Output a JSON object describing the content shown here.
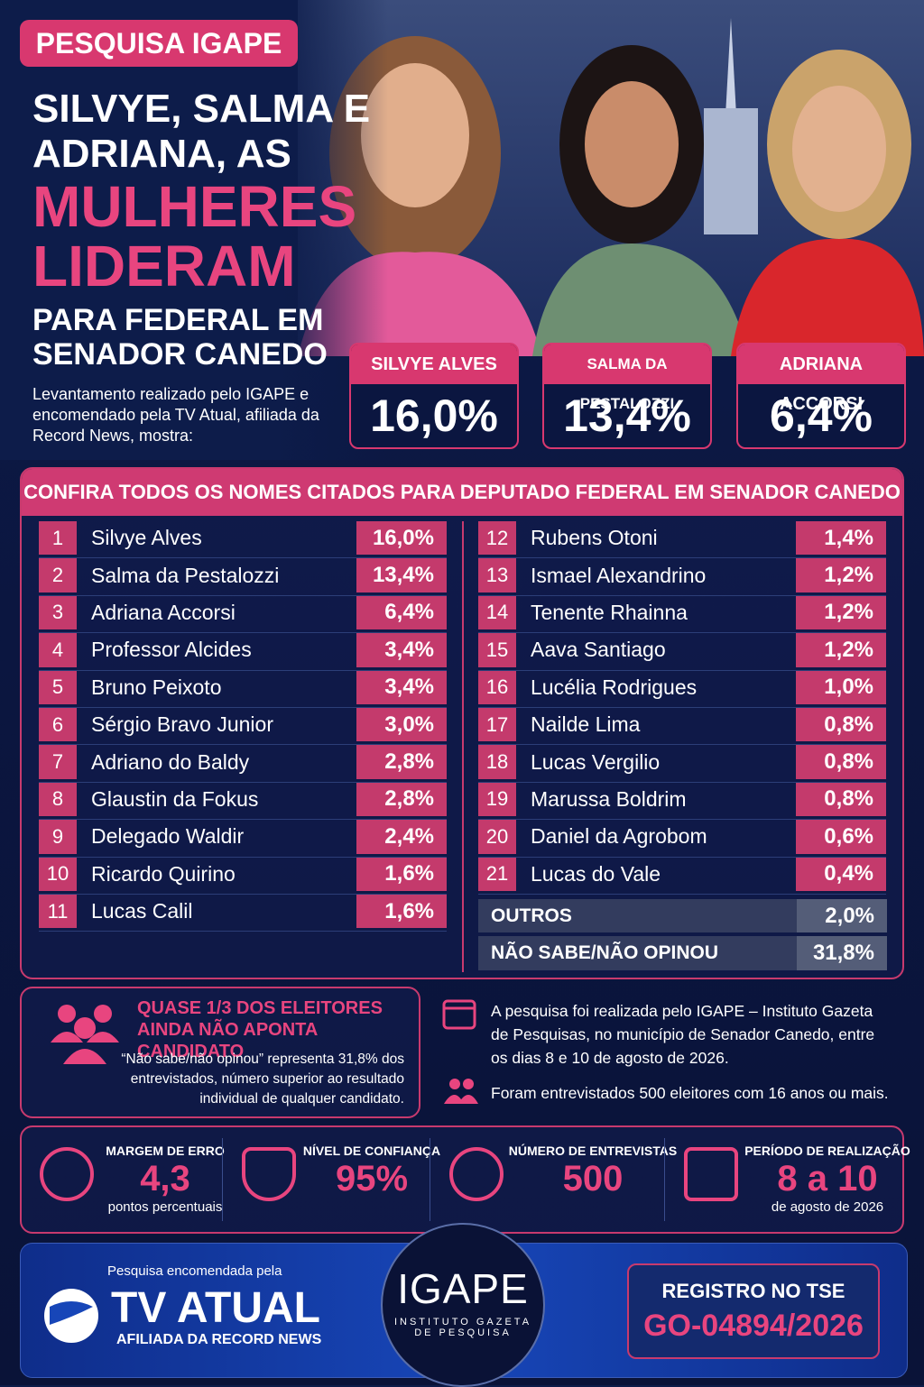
{
  "header": {
    "tag": "PESQUISA IGAPE",
    "title_lines": [
      "SILVYE, SALMA E",
      "ADRIANA, AS"
    ],
    "highlight_lines": [
      "MULHERES",
      "LIDERAM"
    ],
    "subtitle_lines": [
      "PARA FEDERAL EM",
      "SENADOR CANEDO"
    ],
    "intro": "Levantamento realizado pelo IGAPE e encomendado pela TV Atual, afiliada da Record News, mostra:"
  },
  "leaders": [
    {
      "name": "SILVYE ALVES",
      "value": "16,0%"
    },
    {
      "name": "SALMA DA PESTALOZZI",
      "value": "13,4%"
    },
    {
      "name": "ADRIANA ACCORSI",
      "value": "6,4%"
    }
  ],
  "table": {
    "title": "CONFIRA TODOS OS NOMES CITADOS PARA DEPUTADO FEDERAL EM SENADOR CANEDO",
    "rows": [
      [
        "1",
        "Silvye Alves",
        "16,0%"
      ],
      [
        "2",
        "Salma da Pestalozzi",
        "13,4%"
      ],
      [
        "3",
        "Adriana Accorsi",
        "6,4%"
      ],
      [
        "4",
        "Professor Alcides",
        "3,4%"
      ],
      [
        "5",
        "Bruno Peixoto",
        "3,4%"
      ],
      [
        "6",
        "Sérgio Bravo Junior",
        "3,0%"
      ],
      [
        "7",
        "Adriano do Baldy",
        "2,8%"
      ],
      [
        "8",
        "Glaustin da Fokus",
        "2,8%"
      ],
      [
        "9",
        "Delegado Waldir",
        "2,4%"
      ],
      [
        "10",
        "Ricardo Quirino",
        "1,6%"
      ],
      [
        "11",
        "Lucas Calil",
        "1,6%"
      ],
      [
        "12",
        "Rubens Otoni",
        "1,4%"
      ],
      [
        "13",
        "Ismael Alexandrino",
        "1,2%"
      ],
      [
        "14",
        "Tenente Rhainna",
        "1,2%"
      ],
      [
        "15",
        "Aava Santiago",
        "1,2%"
      ],
      [
        "16",
        "Lucélia Rodrigues",
        "1,0%"
      ],
      [
        "17",
        "Nailde Lima",
        "0,8%"
      ],
      [
        "18",
        "Lucas Vergilio",
        "0,8%"
      ],
      [
        "19",
        "Marussa Boldrim",
        "0,8%"
      ],
      [
        "20",
        "Daniel da Agrobom",
        "0,6%"
      ],
      [
        "21",
        "Lucas do Vale",
        "0,4%"
      ]
    ],
    "others": [
      [
        "OUTROS",
        "2,0%"
      ],
      [
        "NÃO SABE/NÃO OPINOU",
        "31,8%"
      ]
    ]
  },
  "highlight": {
    "title_lines": [
      "QUASE 1/3 DOS ELEITORES",
      "AINDA NÃO APONTA CANDIDATO"
    ],
    "text": "“Não sabe/não opinou” representa 31,8% dos entrevistados, número superior ao resultado individual de qualquer candidato."
  },
  "method": {
    "period": "A pesquisa foi realizada pelo IGAPE – Instituto Gazeta de Pesquisas, no município de Senador Canedo, entre os dias 8 e 10 de agosto de 2026.",
    "sample": "Foram entrevistados 500 eleitores com 16 anos ou mais."
  },
  "stats": [
    {
      "label": "MARGEM DE ERRO",
      "value": "4,3",
      "note": "pontos percentuais"
    },
    {
      "label": "NÍVEL DE CONFIANÇA",
      "value": "95%"
    },
    {
      "label": "NÚMERO DE ENTREVISTAS",
      "value": "500"
    },
    {
      "label": "PERÍODO DE REALIZAÇÃO",
      "value": "8 a 10",
      "note": "de agosto de 2026"
    }
  ],
  "footer": {
    "sponsor_caption": "Pesquisa encomendada pela",
    "sponsor": "TV ATUAL",
    "sponsor_sub": "AFILIADA DA RECORD NEWS",
    "logo": "IGAPE",
    "logo_sub_lines": [
      "INSTITUTO GAZETA",
      "DE PESQUISA"
    ],
    "registry_label": "REGISTRO NO TSE",
    "registry": "GO-04894/2026"
  }
}
